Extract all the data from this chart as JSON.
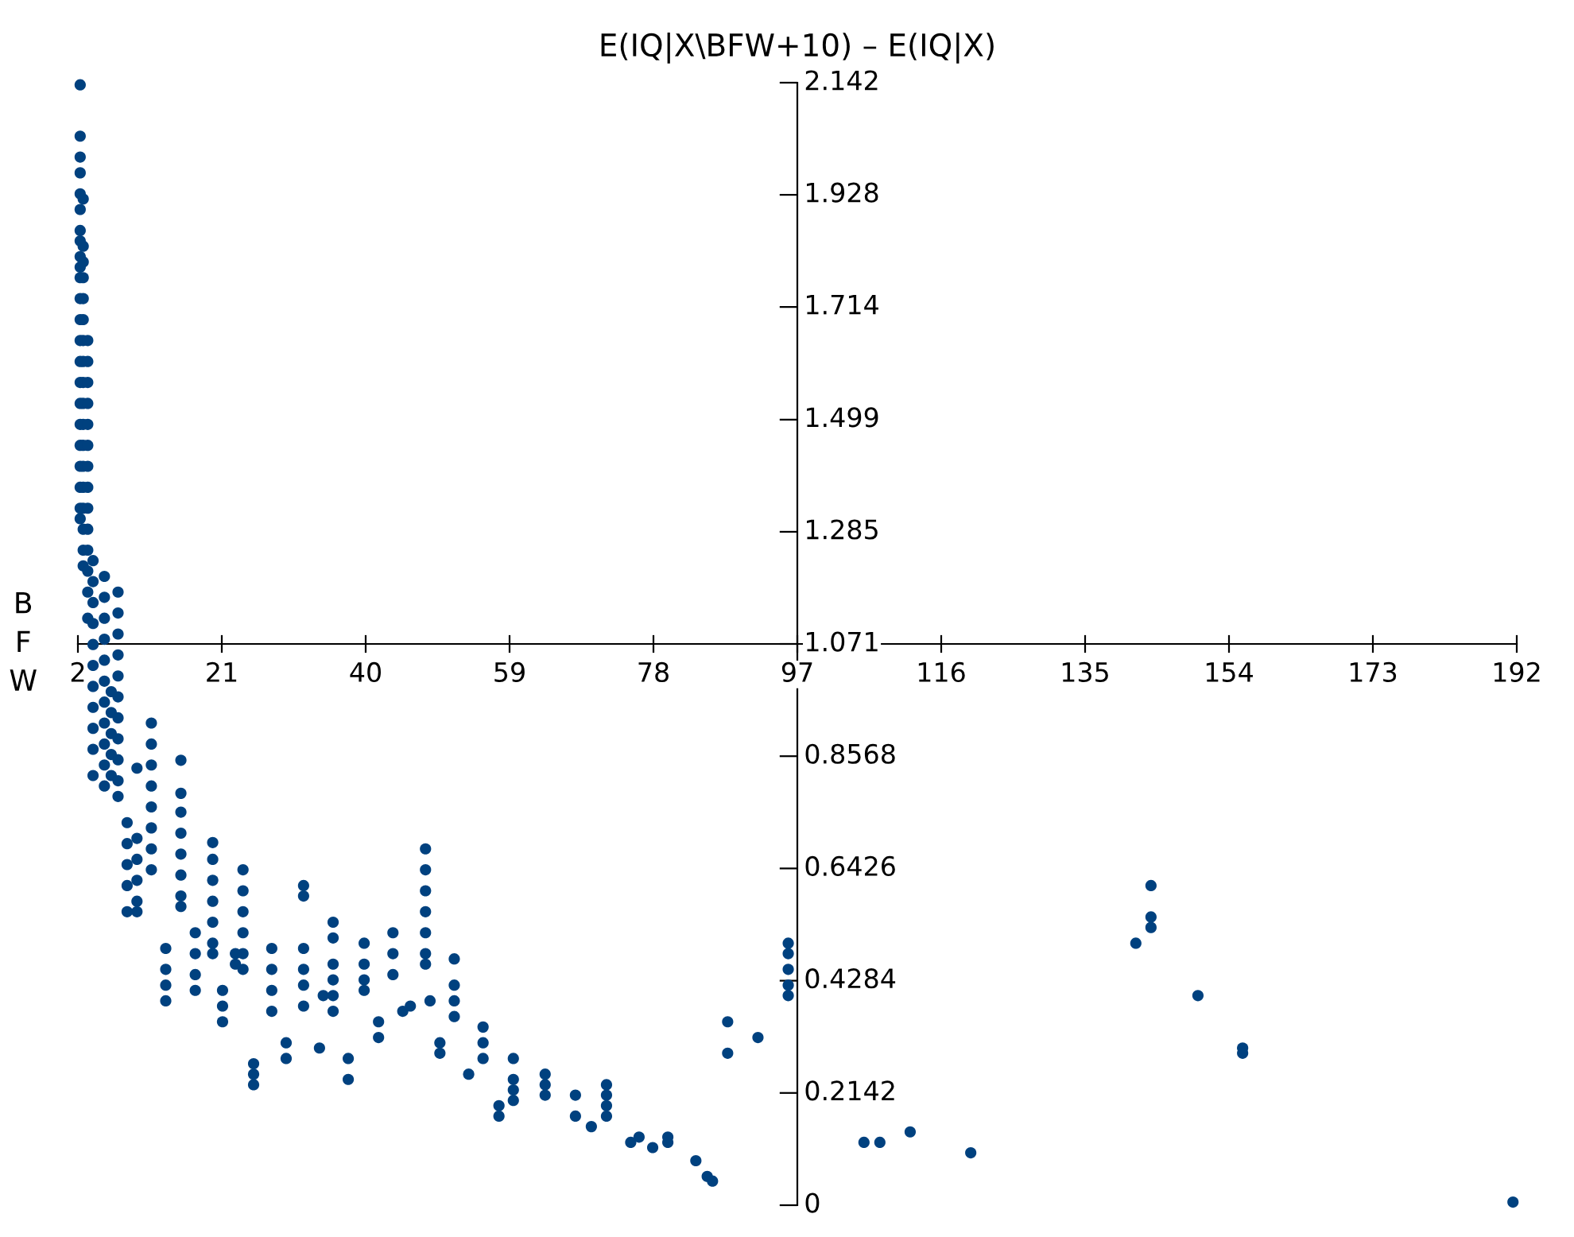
{
  "chart_data": {
    "type": "scatter",
    "title": "E(IQ|X\\BFW+10) – E(IQ|X)",
    "ylabel": "BFW",
    "marker": "circle",
    "xlim": [
      2,
      192
    ],
    "xticks": [
      2,
      21,
      40,
      59,
      78,
      97,
      116,
      135,
      154,
      173,
      192
    ],
    "ylim": [
      0,
      2.142
    ],
    "yticks": [
      0,
      0.2142,
      0.4284,
      0.6426,
      0.8568,
      1.071,
      1.285,
      1.499,
      1.714,
      1.928,
      2.142
    ],
    "series": [
      {
        "color": "#00417f",
        "x": [
          2.3,
          2.3,
          2.3,
          2.3,
          2.3,
          2.3,
          2.3,
          2.3,
          2.3,
          2.3,
          2.3,
          2.3,
          2.3,
          2.3,
          2.3,
          2.3,
          2.3,
          2.3,
          2.3,
          2.3,
          2.3,
          2.3,
          2.3,
          2.7,
          2.7,
          2.7,
          2.7,
          2.7,
          2.7,
          2.7,
          2.7,
          2.7,
          2.7,
          2.7,
          2.7,
          2.7,
          2.7,
          2.7,
          2.7,
          2.7,
          2.7,
          3.3,
          3.3,
          3.3,
          3.3,
          3.3,
          3.3,
          3.3,
          3.3,
          3.3,
          3.3,
          3.3,
          3.3,
          3.3,
          3.3,
          4,
          4,
          4,
          4,
          4,
          4,
          4,
          4,
          4,
          4,
          4,
          5.5,
          5.5,
          5.5,
          5.5,
          5.5,
          5.5,
          5.5,
          5.5,
          5.5,
          5.5,
          5.5,
          6.4,
          6.4,
          6.4,
          6.4,
          6.4,
          7.3,
          7.3,
          7.3,
          7.3,
          7.3,
          7.3,
          7.3,
          7.3,
          7.3,
          7.3,
          7.3,
          9.8,
          9.8,
          9.8,
          9.8,
          9.8,
          9.8,
          8.5,
          8.5,
          8.5,
          8.5,
          8.5,
          11.7,
          11.7,
          11.7,
          11.7,
          11.7,
          11.7,
          11.7,
          11.7,
          15.6,
          15.6,
          15.6,
          15.6,
          15.6,
          15.6,
          15.6,
          15.6,
          19.8,
          19.8,
          19.8,
          19.8,
          19.8,
          19.8,
          19.8,
          17.5,
          17.5,
          17.5,
          17.5,
          13.6,
          13.6,
          13.6,
          13.6,
          23.8,
          23.8,
          23.8,
          23.8,
          23.8,
          23.8,
          22.8,
          22.8,
          21.1,
          21.1,
          21.1,
          25.2,
          25.2,
          25.2,
          27.6,
          27.6,
          27.6,
          27.6,
          29.5,
          29.5,
          31.8,
          31.8,
          31.8,
          31.8,
          31.8,
          31.8,
          33.9,
          35.7,
          35.7,
          35.7,
          35.7,
          35.7,
          35.7,
          34.4,
          37.7,
          37.7,
          39.8,
          39.8,
          39.8,
          39.8,
          41.7,
          41.7,
          43.6,
          43.6,
          43.6,
          44.9,
          45.9,
          47.9,
          47.9,
          47.9,
          47.9,
          47.9,
          47.9,
          47.9,
          49.8,
          49.8,
          51.7,
          51.7,
          51.7,
          51.7,
          48.5,
          53.6,
          55.5,
          55.5,
          55.5,
          57.6,
          57.6,
          59.5,
          59.5,
          59.5,
          59.5,
          63.7,
          63.7,
          63.7,
          67.7,
          67.7,
          69.8,
          71.8,
          71.8,
          71.8,
          71.8,
          75.0,
          76.1,
          77.9,
          79.9,
          79.9,
          83.6,
          85.1,
          85.8,
          87.8,
          87.8,
          91.8,
          95.8,
          95.8,
          95.8,
          95.8,
          95.8,
          105.8,
          107.9,
          111.9,
          119.9,
          141.7,
          143.7,
          143.7,
          143.7,
          149.9,
          155.8,
          155.8,
          191.5
        ],
        "values": [
          2.138,
          2.04,
          2.0,
          1.97,
          1.93,
          1.9,
          1.86,
          1.84,
          1.81,
          1.79,
          1.77,
          1.73,
          1.69,
          1.65,
          1.61,
          1.57,
          1.53,
          1.49,
          1.45,
          1.41,
          1.37,
          1.33,
          1.31,
          1.92,
          1.83,
          1.8,
          1.77,
          1.73,
          1.69,
          1.65,
          1.61,
          1.57,
          1.53,
          1.49,
          1.45,
          1.41,
          1.37,
          1.33,
          1.29,
          1.25,
          1.22,
          1.65,
          1.61,
          1.57,
          1.53,
          1.49,
          1.45,
          1.41,
          1.37,
          1.33,
          1.29,
          1.25,
          1.21,
          1.17,
          1.12,
          1.23,
          1.19,
          1.15,
          1.11,
          1.07,
          1.03,
          0.99,
          0.95,
          0.91,
          0.87,
          0.82,
          1.2,
          1.16,
          1.12,
          1.08,
          1.04,
          1.0,
          0.96,
          0.92,
          0.88,
          0.84,
          0.8,
          0.98,
          0.94,
          0.9,
          0.86,
          0.82,
          1.17,
          1.13,
          1.09,
          1.05,
          1.01,
          0.97,
          0.93,
          0.89,
          0.85,
          0.81,
          0.78,
          0.834,
          0.7,
          0.66,
          0.62,
          0.58,
          0.56,
          0.73,
          0.69,
          0.65,
          0.61,
          0.56,
          0.92,
          0.88,
          0.84,
          0.8,
          0.76,
          0.72,
          0.68,
          0.64,
          0.849,
          0.786,
          0.75,
          0.71,
          0.67,
          0.63,
          0.59,
          0.57,
          0.692,
          0.66,
          0.62,
          0.58,
          0.54,
          0.5,
          0.48,
          0.52,
          0.48,
          0.44,
          0.41,
          0.49,
          0.45,
          0.42,
          0.39,
          0.64,
          0.6,
          0.56,
          0.52,
          0.48,
          0.45,
          0.48,
          0.46,
          0.41,
          0.38,
          0.35,
          0.27,
          0.25,
          0.23,
          0.49,
          0.45,
          0.41,
          0.37,
          0.31,
          0.28,
          0.61,
          0.59,
          0.49,
          0.45,
          0.42,
          0.38,
          0.3,
          0.54,
          0.51,
          0.46,
          0.43,
          0.4,
          0.37,
          0.4,
          0.28,
          0.24,
          0.5,
          0.46,
          0.43,
          0.41,
          0.35,
          0.32,
          0.52,
          0.48,
          0.44,
          0.37,
          0.38,
          0.68,
          0.64,
          0.6,
          0.56,
          0.52,
          0.48,
          0.46,
          0.31,
          0.29,
          0.47,
          0.42,
          0.39,
          0.36,
          0.39,
          0.25,
          0.34,
          0.31,
          0.28,
          0.19,
          0.17,
          0.28,
          0.24,
          0.22,
          0.2,
          0.25,
          0.23,
          0.21,
          0.21,
          0.17,
          0.15,
          0.23,
          0.21,
          0.19,
          0.17,
          0.12,
          0.13,
          0.11,
          0.12,
          0.13,
          0.085,
          0.055,
          0.046,
          0.35,
          0.29,
          0.32,
          0.5,
          0.48,
          0.45,
          0.42,
          0.4,
          0.12,
          0.12,
          0.14,
          0.1,
          0.5,
          0.61,
          0.55,
          0.53,
          0.4,
          0.29,
          0.3,
          0.006
        ]
      }
    ]
  }
}
